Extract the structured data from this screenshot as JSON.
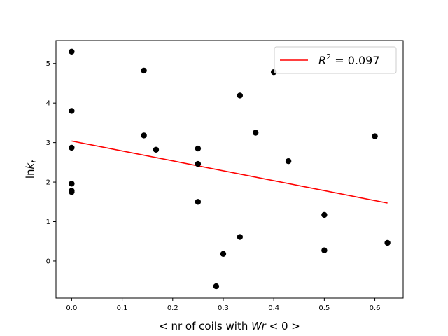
{
  "chart_data": {
    "type": "scatter",
    "xlabel_parts": [
      "< nr of coils with ",
      "Wr",
      " < 0 >"
    ],
    "ylabel_parts": [
      "ln",
      "k",
      "f"
    ],
    "xlim": [
      -0.031,
      0.656
    ],
    "ylim": [
      -0.94,
      5.58
    ],
    "xticks": [
      0.0,
      0.1,
      0.2,
      0.3,
      0.4,
      0.5,
      0.6
    ],
    "xtick_labels": [
      "0.0",
      "0.1",
      "0.2",
      "0.3",
      "0.4",
      "0.5",
      "0.6"
    ],
    "yticks": [
      0,
      1,
      2,
      3,
      4,
      5
    ],
    "ytick_labels": [
      "0",
      "1",
      "2",
      "3",
      "4",
      "5"
    ],
    "grid": false,
    "legend_position": "top-right",
    "points": [
      {
        "x": 0.0,
        "y": 5.3
      },
      {
        "x": 0.0,
        "y": 3.8
      },
      {
        "x": 0.0,
        "y": 2.87
      },
      {
        "x": 0.0,
        "y": 1.96
      },
      {
        "x": 0.0,
        "y": 1.78
      },
      {
        "x": 0.0,
        "y": 1.75
      },
      {
        "x": 0.143,
        "y": 4.82
      },
      {
        "x": 0.143,
        "y": 3.18
      },
      {
        "x": 0.167,
        "y": 2.82
      },
      {
        "x": 0.25,
        "y": 2.85
      },
      {
        "x": 0.25,
        "y": 2.46
      },
      {
        "x": 0.25,
        "y": 1.5
      },
      {
        "x": 0.286,
        "y": -0.64
      },
      {
        "x": 0.3,
        "y": 0.18
      },
      {
        "x": 0.333,
        "y": 4.19
      },
      {
        "x": 0.333,
        "y": 0.61
      },
      {
        "x": 0.364,
        "y": 3.25
      },
      {
        "x": 0.4,
        "y": 4.78
      },
      {
        "x": 0.429,
        "y": 2.53
      },
      {
        "x": 0.5,
        "y": 1.17
      },
      {
        "x": 0.5,
        "y": 0.27
      },
      {
        "x": 0.6,
        "y": 3.16
      },
      {
        "x": 0.625,
        "y": 0.46
      }
    ],
    "fit_line": {
      "x": [
        0.0,
        0.625
      ],
      "y": [
        3.04,
        1.47
      ],
      "legend_prefix": "R",
      "legend_exp": "2",
      "legend_value": " = 0.097"
    },
    "colors": {
      "points": "#000000",
      "fit": "#ff0000",
      "axes": "#000000",
      "legend_border": "#cccccc"
    }
  }
}
